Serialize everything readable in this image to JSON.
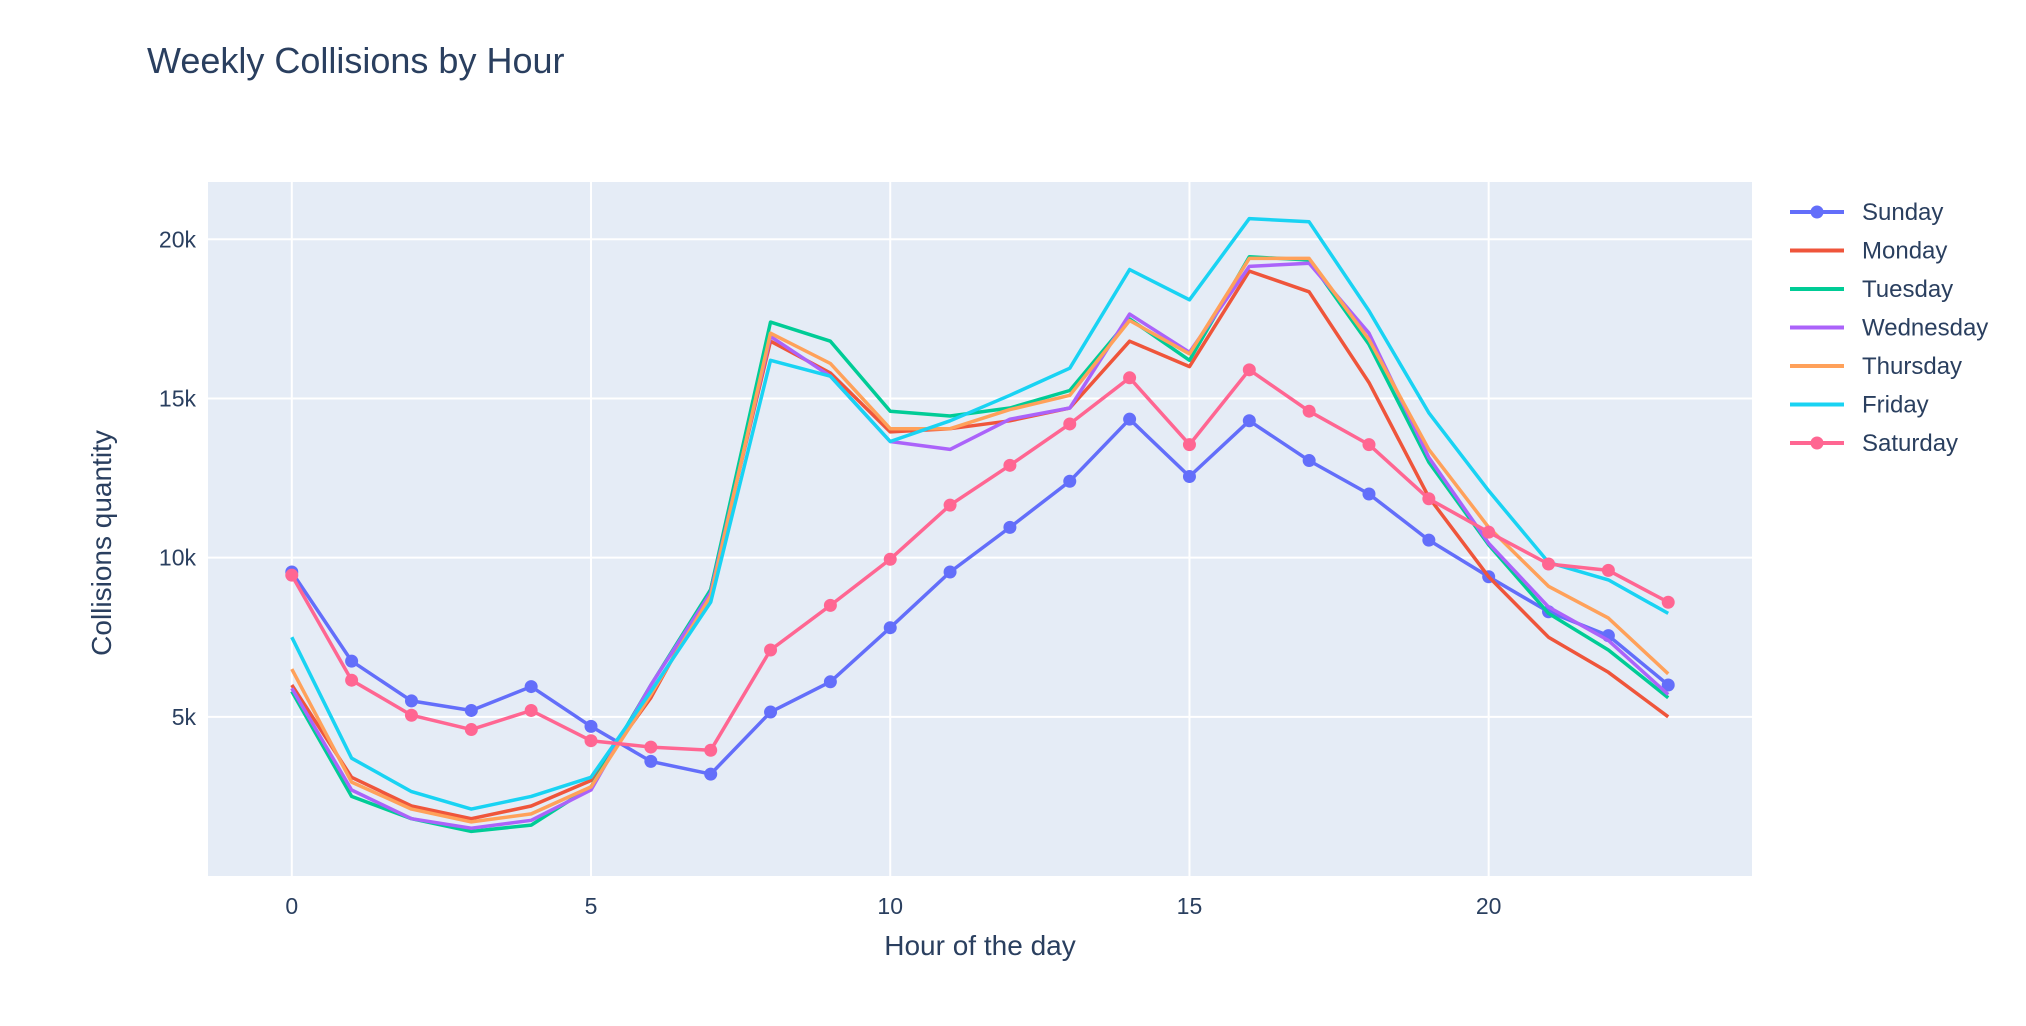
{
  "chart_data": {
    "type": "line",
    "title": "Weekly Collisions by Hour",
    "xlabel": "Hour of the day",
    "ylabel": "Collisions quantity",
    "xlim": [
      -1.4,
      24.4
    ],
    "ylim": [
      0,
      21800
    ],
    "x_ticks": [
      0,
      5,
      10,
      15,
      20
    ],
    "y_ticks": [
      5000,
      10000,
      15000,
      20000
    ],
    "y_tick_labels": [
      "5k",
      "10k",
      "15k",
      "20k"
    ],
    "grid": true,
    "legend": "right",
    "x": [
      0,
      1,
      2,
      3,
      4,
      5,
      6,
      7,
      8,
      9,
      10,
      11,
      12,
      13,
      14,
      15,
      16,
      17,
      18,
      19,
      20,
      21,
      22,
      23
    ],
    "series": [
      {
        "name": "Sunday",
        "color": "#636efa",
        "markers": true,
        "values": [
          9550,
          6750,
          5500,
          5200,
          5950,
          4700,
          3600,
          3200,
          5150,
          6100,
          7800,
          9550,
          10950,
          12400,
          14350,
          12550,
          14300,
          13050,
          12000,
          10550,
          9400,
          8300,
          7550,
          6000
        ]
      },
      {
        "name": "Monday",
        "color": "#EF553B",
        "markers": false,
        "values": [
          6000,
          3100,
          2200,
          1800,
          2200,
          3000,
          5600,
          9000,
          16800,
          15800,
          13950,
          14050,
          14300,
          14700,
          16800,
          16000,
          19000,
          18350,
          15500,
          11900,
          9400,
          7500,
          6400,
          5000
        ]
      },
      {
        "name": "Tuesday",
        "color": "#00cc96",
        "markers": false,
        "values": [
          5800,
          2500,
          1800,
          1400,
          1600,
          2800,
          6000,
          9000,
          17400,
          16800,
          14600,
          14450,
          14700,
          15250,
          17500,
          16200,
          19450,
          19350,
          16700,
          13000,
          10400,
          8250,
          7100,
          5600
        ]
      },
      {
        "name": "Wednesday",
        "color": "#ab63fa",
        "markers": false,
        "values": [
          5900,
          2700,
          1800,
          1500,
          1750,
          2700,
          6000,
          8900,
          16950,
          15700,
          13650,
          13400,
          14350,
          14700,
          17650,
          16450,
          19150,
          19250,
          17050,
          13150,
          10450,
          8450,
          7400,
          5700
        ]
      },
      {
        "name": "Thursday",
        "color": "#FFA15A",
        "markers": false,
        "values": [
          6500,
          2950,
          2100,
          1700,
          1950,
          2800,
          5700,
          8800,
          17050,
          16100,
          14050,
          14050,
          14650,
          15100,
          17450,
          16400,
          19400,
          19400,
          16850,
          13400,
          10950,
          9100,
          8100,
          6350
        ]
      },
      {
        "name": "Friday",
        "color": "#19d3f3",
        "markers": false,
        "values": [
          7500,
          3700,
          2650,
          2100,
          2500,
          3100,
          5800,
          8600,
          16200,
          15700,
          13650,
          14300,
          15100,
          15950,
          19050,
          18100,
          20650,
          20550,
          17750,
          14550,
          12100,
          9850,
          9300,
          8250
        ]
      },
      {
        "name": "Saturday",
        "color": "#FF6692",
        "markers": true,
        "values": [
          9450,
          6150,
          5050,
          4600,
          5200,
          4250,
          4050,
          3950,
          7100,
          8500,
          9950,
          11650,
          12900,
          14200,
          15650,
          13550,
          15900,
          14600,
          13550,
          11850,
          10800,
          9800,
          9600,
          8600
        ]
      }
    ]
  }
}
